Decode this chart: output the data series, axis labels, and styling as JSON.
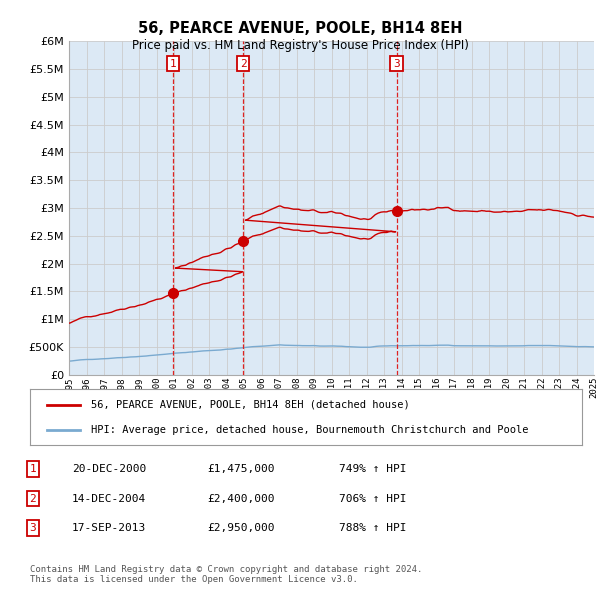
{
  "title": "56, PEARCE AVENUE, POOLE, BH14 8EH",
  "subtitle": "Price paid vs. HM Land Registry's House Price Index (HPI)",
  "ylim": [
    0,
    6000000
  ],
  "yticks": [
    0,
    500000,
    1000000,
    1500000,
    2000000,
    2500000,
    3000000,
    3500000,
    4000000,
    4500000,
    5000000,
    5500000,
    6000000
  ],
  "bg_color": "#dce9f5",
  "grid_color": "#cccccc",
  "sale_points": [
    {
      "year": 2000.96,
      "price": 1475000,
      "label": "1"
    },
    {
      "year": 2004.95,
      "price": 2400000,
      "label": "2"
    },
    {
      "year": 2013.72,
      "price": 2950000,
      "label": "3"
    }
  ],
  "vline_color": "#dd2222",
  "marker_box_color": "#cc0000",
  "legend_line1": "56, PEARCE AVENUE, POOLE, BH14 8EH (detached house)",
  "legend_line2": "HPI: Average price, detached house, Bournemouth Christchurch and Poole",
  "table_rows": [
    [
      "1",
      "20-DEC-2000",
      "£1,475,000",
      "749% ↑ HPI"
    ],
    [
      "2",
      "14-DEC-2004",
      "£2,400,000",
      "706% ↑ HPI"
    ],
    [
      "3",
      "17-SEP-2013",
      "£2,950,000",
      "788% ↑ HPI"
    ]
  ],
  "footer": "Contains HM Land Registry data © Crown copyright and database right 2024.\nThis data is licensed under the Open Government Licence v3.0.",
  "hpi_color": "#7aaad0",
  "sale_line_color": "#cc0000",
  "xstart": 1995,
  "xend": 2025
}
